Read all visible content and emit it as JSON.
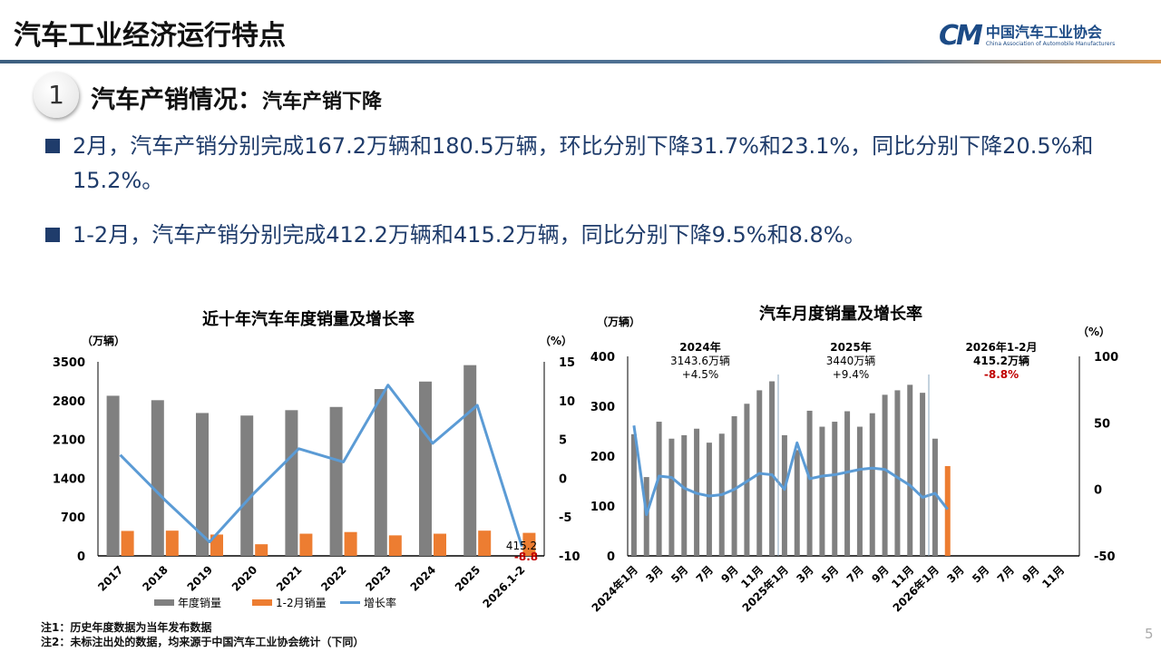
{
  "header": {
    "title": "汽车工业经济运行特点",
    "logo_cn": "中国汽车工业协会",
    "logo_en": "China Association of Automobile Manufacturers"
  },
  "section": {
    "number": "1",
    "title": "汽车产销情况：",
    "subtitle": "汽车产销下降"
  },
  "bullets": [
    "2月，汽车产销分别完成167.2万辆和180.5万辆，环比分别下降31.7%和23.1%，同比分别下降20.5%和15.2%。",
    "1-2月，汽车产销分别完成412.2万辆和415.2万辆，同比分别下降9.5%和8.8%。"
  ],
  "notes": [
    "注1：历史年度数据为当年发布数据",
    "注2：未标注出处的数据，均来源于中国汽车工业协会统计（下同）"
  ],
  "page_number": "5",
  "colors": {
    "gray_bar": "#808080",
    "orange_bar": "#ed7d31",
    "line": "#5b9bd5",
    "negative_label": "#c00000",
    "text_blue": "#1f3c6b"
  },
  "chart_data": [
    {
      "type": "bar",
      "title": "近十年汽车年度销量及增长率",
      "ylabel": "（万辆）",
      "y2label": "（%）",
      "ylim": [
        0,
        3500
      ],
      "yticks": [
        "3500",
        "2800",
        "2100",
        "1400",
        "700",
        "0"
      ],
      "y2lim": [
        -10,
        15
      ],
      "y2ticks": [
        "15",
        "10",
        "5",
        "0",
        "-5",
        "-10"
      ],
      "categories": [
        "2017",
        "2018",
        "2019",
        "2020",
        "2021",
        "2022",
        "2023",
        "2024",
        "2025",
        "2026.1-2"
      ],
      "series": [
        {
          "name": "年度销量",
          "type": "bar",
          "values": [
            2888,
            2808,
            2577,
            2531,
            2628,
            2686,
            3009,
            3144,
            3440,
            null
          ]
        },
        {
          "name": "1-2月销量",
          "type": "bar",
          "values": [
            450,
            455,
            385,
            210,
            400,
            430,
            370,
            400,
            455,
            415.2
          ]
        },
        {
          "name": "增长率",
          "type": "line",
          "axis": "right",
          "values": [
            3.0,
            -2.8,
            -8.2,
            -1.9,
            3.8,
            2.1,
            12.0,
            4.5,
            9.4,
            -8.8
          ]
        }
      ],
      "data_labels": {
        "sales": "415.2",
        "growth": "-8.8"
      },
      "legend": "bottom"
    },
    {
      "type": "bar",
      "title": "汽车月度销量及增长率",
      "ylabel": "（万辆）",
      "y2label": "（%）",
      "ylim": [
        0,
        400
      ],
      "yticks": [
        "400",
        "300",
        "200",
        "100",
        "0"
      ],
      "y2lim": [
        -50,
        100
      ],
      "y2ticks": [
        "100",
        "50",
        "0",
        "-50"
      ],
      "x_labels": [
        "2024年1月",
        "3月",
        "5月",
        "7月",
        "9月",
        "11月",
        "2025年1月",
        "3月",
        "5月",
        "7月",
        "9月",
        "11月",
        "2026年1月",
        "3月",
        "5月",
        "7月",
        "9月",
        "11月"
      ],
      "series": [
        {
          "type": "bar",
          "values": [
            244,
            158,
            269,
            235,
            242,
            255,
            227,
            245,
            280,
            305,
            332,
            350,
            242,
            212,
            291,
            259,
            269,
            290,
            259,
            286,
            323,
            332,
            343,
            327,
            235,
            null
          ]
        },
        {
          "type": "bar",
          "highlight": true,
          "values": [
            null,
            null,
            null,
            null,
            null,
            null,
            null,
            null,
            null,
            null,
            null,
            null,
            null,
            null,
            null,
            null,
            null,
            null,
            null,
            null,
            null,
            null,
            null,
            null,
            null,
            180
          ]
        },
        {
          "type": "line",
          "axis": "right",
          "values": [
            48,
            -19,
            10,
            9,
            1,
            -3,
            -5,
            -4,
            0,
            6,
            12,
            11,
            0,
            35,
            8,
            10,
            11,
            13,
            15,
            16,
            15,
            9,
            3,
            -6,
            -3,
            -15
          ]
        }
      ],
      "annotations": [
        {
          "lines": [
            "2024年",
            "3143.6万辆",
            "+4.5%"
          ]
        },
        {
          "lines": [
            "2025年",
            "3440万辆",
            "+9.4%"
          ]
        },
        {
          "lines": [
            "2026年1-2月",
            "415.2万辆",
            "-8.8%"
          ],
          "negative": true
        }
      ]
    }
  ]
}
